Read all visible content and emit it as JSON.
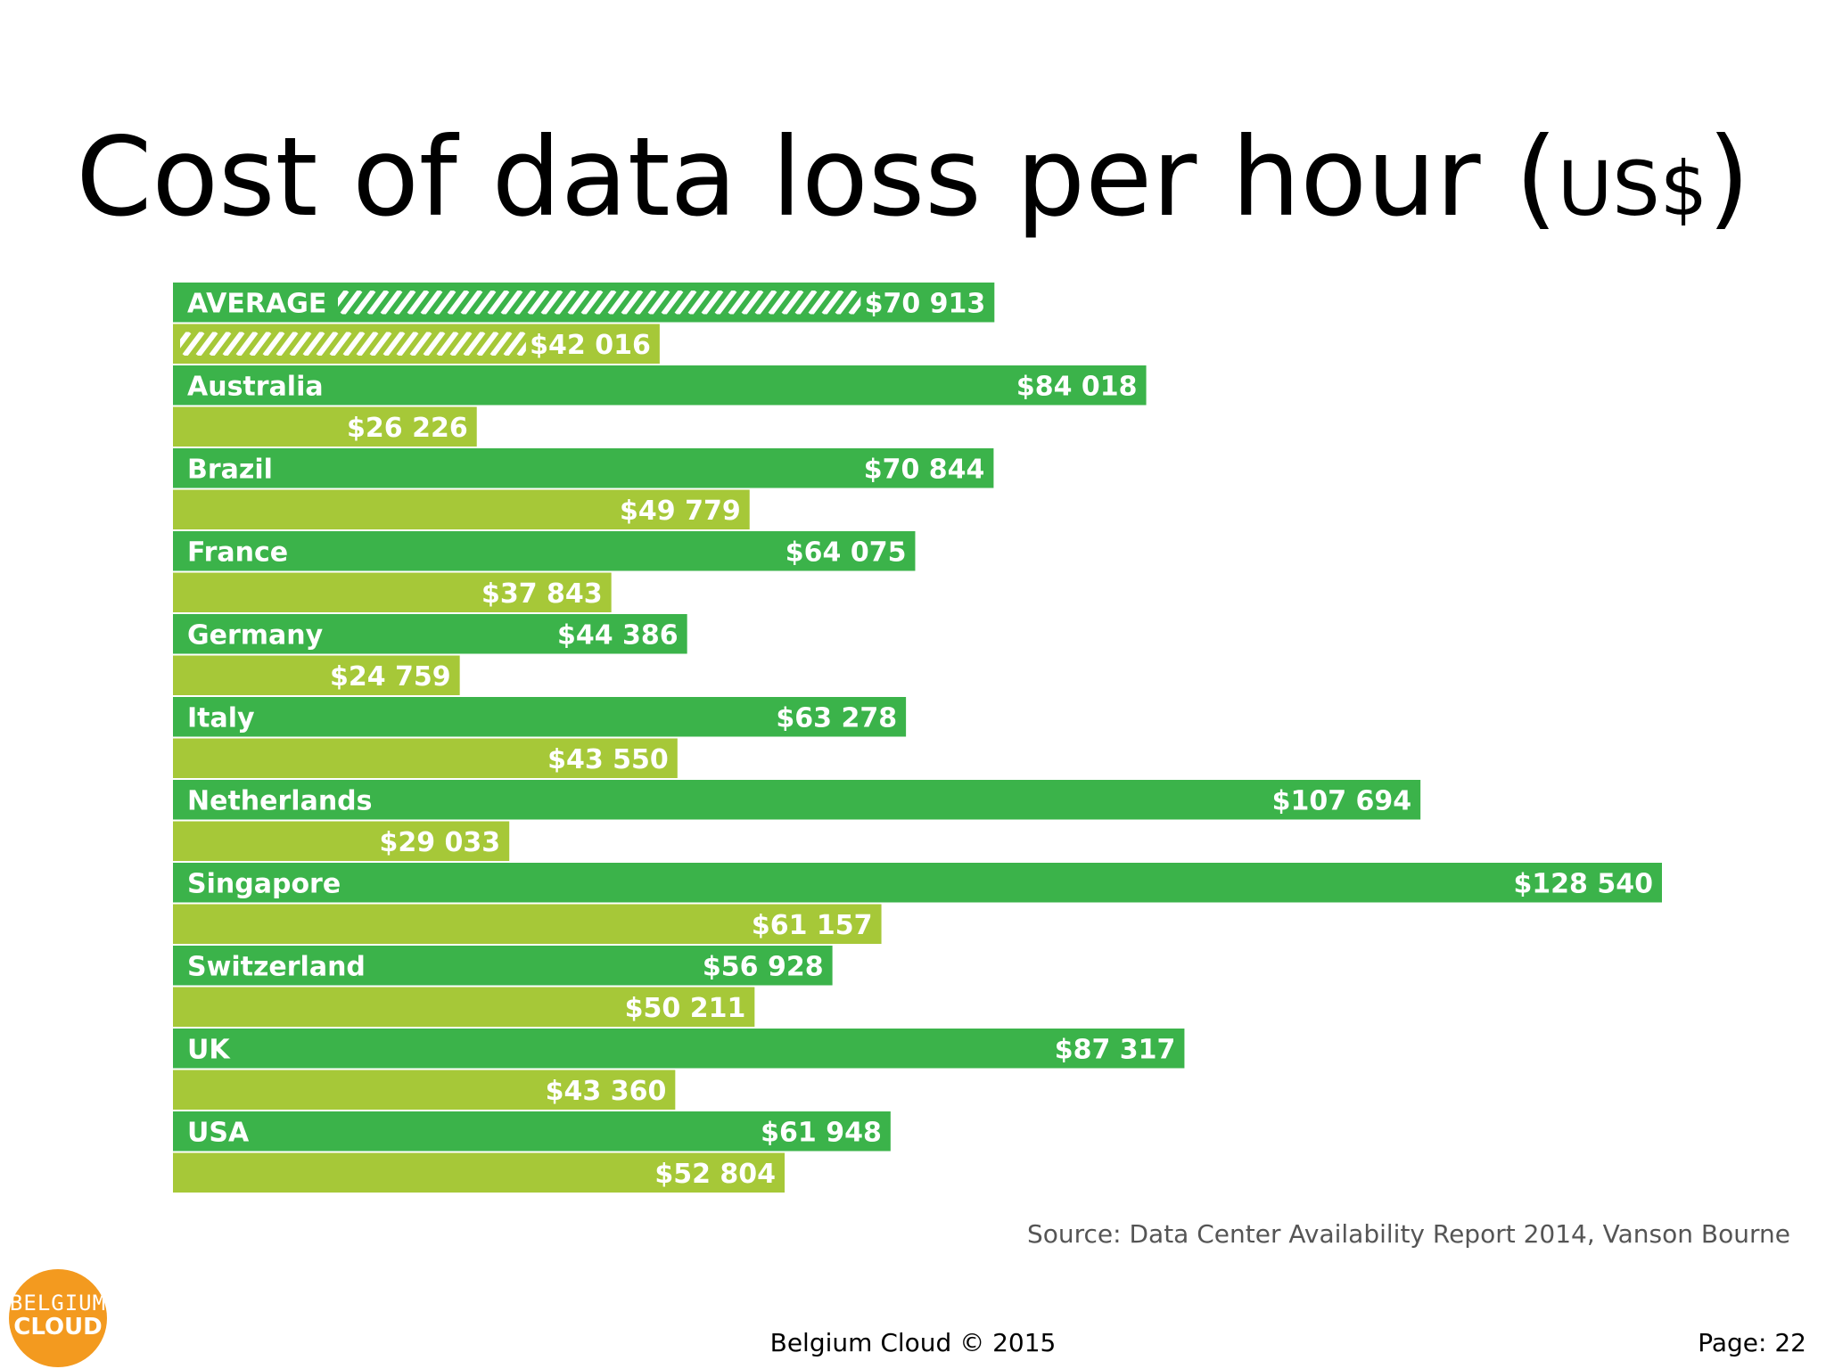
{
  "title": {
    "main": "Cost of data loss per hour ",
    "open": "(",
    "unit": "US$",
    "close": ")"
  },
  "source": "Source: Data Center Availability Report 2014, Vanson Bourne",
  "footer": "Belgium Cloud © 2015",
  "page": "Page: 22",
  "logo": {
    "line1": "BELGIUM",
    "line2": "CLOUD"
  },
  "colors": {
    "primary": "#3bb34a",
    "secondary": "#a6c838",
    "text_on_bar": "#ffffff"
  },
  "chart_data": {
    "type": "bar",
    "orientation": "horizontal",
    "title": "Cost of data loss per hour (US$)",
    "categories": [
      "AVERAGE",
      "Australia",
      "Brazil",
      "France",
      "Germany",
      "Italy",
      "Netherlands",
      "Singapore",
      "Switzerland",
      "UK",
      "USA"
    ],
    "series": [
      {
        "color": "#3bb34a",
        "values": [
          70913,
          84018,
          70844,
          64075,
          44386,
          63278,
          107694,
          128540,
          56928,
          87317,
          61948
        ],
        "labels": [
          "$70 913",
          "$84 018",
          "$70 844",
          "$64 075",
          "$44 386",
          "$63 278",
          "$107 694",
          "$128 540",
          "$56 928",
          "$87 317",
          "$61 948"
        ]
      },
      {
        "color": "#a6c838",
        "values": [
          42016,
          26226,
          49779,
          37843,
          24759,
          43550,
          29033,
          61157,
          50211,
          43360,
          52804
        ],
        "labels": [
          "$42 016",
          "$26 226",
          "$49 779",
          "$37 843",
          "$24 759",
          "$43 550",
          "$29 033",
          "$61 157",
          "$50 211",
          "$43 360",
          "$52 804"
        ]
      }
    ],
    "average_hatched": true,
    "xlim": [
      0,
      128540
    ],
    "grid": false,
    "legend": "none"
  }
}
